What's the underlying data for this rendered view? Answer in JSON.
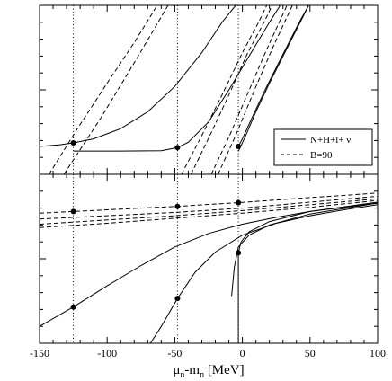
{
  "chart_data": {
    "type": "line",
    "title": "",
    "xlabel": "μn-mn [MeV]",
    "xlabel_parts": {
      "mu": "μ",
      "mu_sub": "n",
      "dash": "-m",
      "m_sub": "n",
      "unit": " [MeV]"
    },
    "xlim": [
      -150,
      100
    ],
    "x_ticks": [
      -150,
      -100,
      -50,
      0,
      50,
      100
    ],
    "x_tick_labels": [
      "-150",
      "-100",
      "-50",
      "0",
      "50",
      "100"
    ],
    "grid": false,
    "legend": {
      "placement": "right",
      "entries": [
        {
          "label": "N+H+l+ ν",
          "style": "solid"
        },
        {
          "label": "B=90",
          "style": "dashed"
        }
      ]
    },
    "guide_lines_x": [
      -125,
      -48,
      -3
    ],
    "panels": [
      {
        "name": "top",
        "ylim": [
          0,
          1
        ],
        "series": [
          {
            "style": "solid",
            "points": [
              [
                -150,
                0.165
              ],
              [
                -135,
                0.175
              ],
              [
                -125,
                0.186
              ],
              [
                -110,
                0.21
              ],
              [
                -90,
                0.27
              ],
              [
                -70,
                0.37
              ],
              [
                -50,
                0.52
              ],
              [
                -30,
                0.72
              ],
              [
                -15,
                0.9
              ],
              [
                -5,
                1.0
              ]
            ]
          },
          {
            "style": "solid",
            "points": [
              [
                -125,
                0.138
              ],
              [
                -90,
                0.138
              ],
              [
                -60,
                0.14
              ],
              [
                -48,
                0.158
              ],
              [
                -40,
                0.19
              ],
              [
                -25,
                0.31
              ],
              [
                -10,
                0.5
              ],
              [
                5,
                0.7
              ],
              [
                20,
                0.9
              ],
              [
                28,
                1.0
              ]
            ]
          },
          {
            "style": "solid",
            "points": [
              [
                -3,
                0.165
              ],
              [
                0,
                0.21
              ],
              [
                8,
                0.35
              ],
              [
                18,
                0.52
              ],
              [
                30,
                0.71
              ],
              [
                42,
                0.9
              ],
              [
                49,
                1.0
              ]
            ]
          },
          {
            "style": "solid",
            "points": [
              [
                -3,
                0.135
              ],
              [
                2,
                0.22
              ],
              [
                10,
                0.37
              ],
              [
                20,
                0.54
              ],
              [
                32,
                0.73
              ],
              [
                44,
                0.92
              ],
              [
                49,
                1.0
              ]
            ]
          },
          {
            "style": "dashed",
            "points": [
              [
                -143,
                0.0
              ],
              [
                -122,
                0.27
              ],
              [
                -100,
                0.54
              ],
              [
                -80,
                0.78
              ],
              [
                -63,
                1.0
              ]
            ]
          },
          {
            "style": "dashed",
            "points": [
              [
                -132,
                0.0
              ],
              [
                -105,
                0.33
              ],
              [
                -80,
                0.66
              ],
              [
                -55,
                1.0
              ]
            ]
          },
          {
            "style": "dashed",
            "points": [
              [
                -45,
                0.0
              ],
              [
                -30,
                0.23
              ],
              [
                -15,
                0.47
              ],
              [
                0,
                0.72
              ],
              [
                12,
                0.9
              ],
              [
                18,
                1.0
              ]
            ]
          },
          {
            "style": "dashed",
            "points": [
              [
                -38,
                0.0
              ],
              [
                -24,
                0.23
              ],
              [
                -10,
                0.47
              ],
              [
                4,
                0.72
              ],
              [
                16,
                0.9
              ],
              [
                22,
                1.0
              ]
            ]
          },
          {
            "style": "dashed",
            "points": [
              [
                -23,
                0.0
              ],
              [
                -10,
                0.22
              ],
              [
                4,
                0.48
              ],
              [
                18,
                0.74
              ],
              [
                33,
                1.0
              ]
            ]
          },
          {
            "style": "dashed",
            "points": [
              [
                -18,
                0.0
              ],
              [
                -5,
                0.23
              ],
              [
                9,
                0.5
              ],
              [
                23,
                0.76
              ],
              [
                37,
                1.0
              ]
            ]
          }
        ],
        "markers": [
          [
            -125,
            0.186
          ],
          [
            -48,
            0.158
          ],
          [
            -3,
            0.165
          ]
        ]
      },
      {
        "name": "bottom",
        "ylim": [
          0,
          1
        ],
        "series": [
          {
            "style": "solid",
            "points": [
              [
                -150,
                0.1
              ],
              [
                -125,
                0.215
              ],
              [
                -100,
                0.34
              ],
              [
                -75,
                0.46
              ],
              [
                -50,
                0.57
              ],
              [
                -25,
                0.65
              ],
              [
                0,
                0.705
              ],
              [
                25,
                0.745
              ],
              [
                50,
                0.78
              ],
              [
                75,
                0.805
              ],
              [
                100,
                0.83
              ]
            ]
          },
          {
            "style": "solid",
            "points": [
              [
                -68,
                0.0
              ],
              [
                -60,
                0.1
              ],
              [
                -48,
                0.265
              ],
              [
                -35,
                0.42
              ],
              [
                -20,
                0.54
              ],
              [
                0,
                0.64
              ],
              [
                25,
                0.71
              ],
              [
                50,
                0.755
              ],
              [
                75,
                0.79
              ],
              [
                100,
                0.82
              ]
            ]
          },
          {
            "style": "solid",
            "points": [
              [
                -3,
                0.0
              ],
              [
                -3,
                0.25
              ],
              [
                -3,
                0.535
              ],
              [
                -1,
                0.6
              ],
              [
                5,
                0.66
              ],
              [
                20,
                0.72
              ],
              [
                50,
                0.78
              ],
              [
                100,
                0.835
              ]
            ]
          },
          {
            "style": "solid",
            "points": [
              [
                -8,
                0.28
              ],
              [
                -6,
                0.45
              ],
              [
                -3,
                0.57
              ],
              [
                5,
                0.64
              ],
              [
                20,
                0.7
              ],
              [
                50,
                0.765
              ],
              [
                100,
                0.83
              ]
            ]
          },
          {
            "style": "dashed",
            "points": [
              [
                -150,
                0.77
              ],
              [
                -125,
                0.78
              ],
              [
                -100,
                0.79
              ],
              [
                -75,
                0.8
              ],
              [
                -48,
                0.81
              ],
              [
                -25,
                0.822
              ],
              [
                -3,
                0.832
              ],
              [
                25,
                0.848
              ],
              [
                50,
                0.862
              ],
              [
                75,
                0.875
              ],
              [
                100,
                0.89
              ]
            ]
          },
          {
            "style": "dashed",
            "points": [
              [
                -150,
                0.735
              ],
              [
                -100,
                0.755
              ],
              [
                -48,
                0.775
              ],
              [
                0,
                0.8
              ],
              [
                50,
                0.835
              ],
              [
                100,
                0.87
              ]
            ]
          },
          {
            "style": "dashed",
            "points": [
              [
                -150,
                0.705
              ],
              [
                -100,
                0.73
              ],
              [
                -50,
                0.755
              ],
              [
                0,
                0.785
              ],
              [
                50,
                0.82
              ],
              [
                100,
                0.855
              ]
            ]
          },
          {
            "style": "dashed",
            "points": [
              [
                -150,
                0.685
              ],
              [
                -100,
                0.71
              ],
              [
                -50,
                0.74
              ],
              [
                0,
                0.77
              ],
              [
                50,
                0.805
              ],
              [
                100,
                0.845
              ]
            ]
          }
        ],
        "markers": [
          [
            -125,
            0.78
          ],
          [
            -48,
            0.81
          ],
          [
            -3,
            0.832
          ],
          [
            -3,
            0.535
          ],
          [
            -48,
            0.265
          ],
          [
            -125,
            0.215
          ]
        ]
      }
    ]
  }
}
